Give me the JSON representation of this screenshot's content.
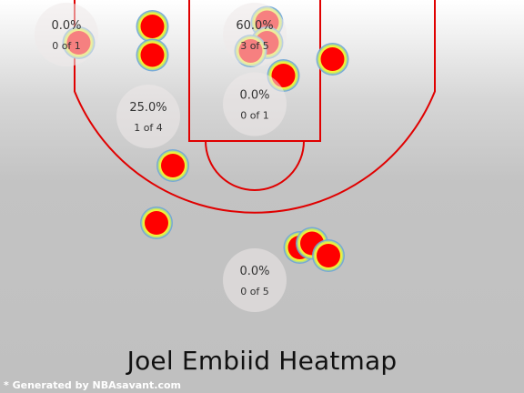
{
  "chart_data": {
    "type": "heatmap",
    "title": "Joel Embiid Heatmap",
    "credit": "* Generated by NBAsavant.com",
    "colors": {
      "court_lines": "#e00000",
      "shot_core": "#ff0000",
      "shot_ring_yellow": "#f2f23a",
      "shot_ring_blue": "#6fa6d6",
      "zone_bubble": "#eeeaea"
    },
    "zones": [
      {
        "id": "left-corner-three",
        "pct": "0.0%",
        "count": "0 of 1",
        "made": 0,
        "attempts": 1,
        "cx": -23,
        "cy": 2
      },
      {
        "id": "paint",
        "pct": "60.0%",
        "count": "3 of 5",
        "made": 3,
        "attempts": 5,
        "cx": 0,
        "cy": 2
      },
      {
        "id": "left-midrange",
        "pct": "25.0%",
        "count": "1 of 4",
        "made": 1,
        "attempts": 4,
        "cx": -13,
        "cy": 12
      },
      {
        "id": "free-throw-area",
        "pct": "0.0%",
        "count": "0 of 1",
        "made": 0,
        "attempts": 1,
        "cx": 0,
        "cy": 10.5
      },
      {
        "id": "above-break-three",
        "pct": "0.0%",
        "count": "0 of 5",
        "made": 0,
        "attempts": 5,
        "cx": 0,
        "cy": 32
      }
    ],
    "shots": [
      {
        "x": -21.5,
        "y": 3
      },
      {
        "x": -12.5,
        "y": 1
      },
      {
        "x": -12.5,
        "y": 4.5
      },
      {
        "x": 1.5,
        "y": 0.5
      },
      {
        "x": 1.5,
        "y": 3
      },
      {
        "x": -0.5,
        "y": 4
      },
      {
        "x": 3.5,
        "y": 7
      },
      {
        "x": 9.5,
        "y": 5
      },
      {
        "x": -10,
        "y": 18
      },
      {
        "x": -12,
        "y": 25
      },
      {
        "x": 5.5,
        "y": 28
      },
      {
        "x": 7,
        "y": 27.5
      },
      {
        "x": 9,
        "y": 29
      }
    ],
    "court": {
      "units": "feet",
      "basket": [
        0,
        0
      ],
      "paint_width": 16,
      "free_throw_distance": 15,
      "free_throw_radius": 6,
      "three_point_corner_x": 22,
      "three_point_radius": 23.75
    }
  }
}
